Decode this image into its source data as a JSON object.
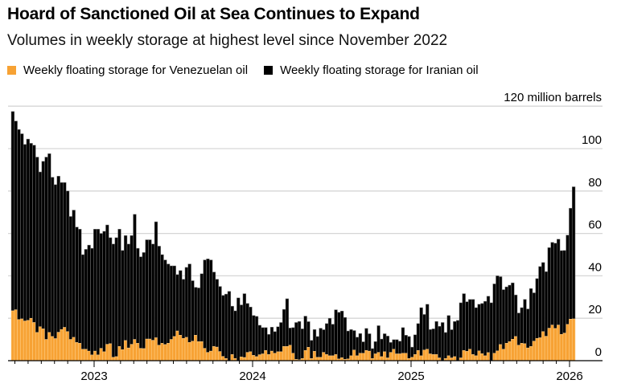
{
  "chart_data": {
    "type": "bar",
    "stacked": true,
    "title": "Hoard of Sanctioned Oil at Sea Continues to Expand",
    "subtitle": "Volumes in weekly storage at highest level since November 2022",
    "ylabel": "",
    "yunit_label": "120 million barrels",
    "ylim": [
      0,
      120
    ],
    "yticks": [
      0,
      20,
      40,
      60,
      80,
      100,
      120
    ],
    "ytick_labels": [
      "0",
      "20",
      "40",
      "60",
      "80",
      "100",
      "120 million barrels"
    ],
    "x_frequency": "weekly",
    "xtick_labels": [
      "2023",
      "2024",
      "2025",
      "2026"
    ],
    "grid": true,
    "legend_placement": "top-left",
    "colors": {
      "venezuelan": "#f7a234",
      "iranian": "#000000"
    },
    "series": [
      {
        "name": "Weekly floating storage for Venezuelan oil",
        "values": [
          23.5,
          24,
          19.4,
          19.7,
          18.7,
          19,
          20,
          18,
          13.3,
          16,
          15,
          10,
          13.3,
          11.4,
          10.4,
          13.4,
          14.7,
          15.7,
          13.7,
          10,
          11,
          8.6,
          8.2,
          5.4,
          5.4,
          4.5,
          2.7,
          4.5,
          2.7,
          5.8,
          4.2,
          7.7,
          8,
          1.6,
          1.9,
          6.7,
          5.2,
          9.5,
          6,
          7.7,
          10,
          8.2,
          5.8,
          5.7,
          10.2,
          10.2,
          9.6,
          10.8,
          7.3,
          8.2,
          7.6,
          8.2,
          10,
          11.4,
          14,
          12,
          10.5,
          11,
          8.6,
          9.2,
          12,
          9,
          9,
          5.8,
          3.9,
          4.5,
          6.7,
          6.4,
          4.3,
          2,
          1,
          0,
          2.9,
          1,
          0,
          1.8,
          1.5,
          3.9,
          4.2,
          2.5,
          1.9,
          2.8,
          3.2,
          4.8,
          2.9,
          4.5,
          3.5,
          4.2,
          4.2,
          6.7,
          6.7,
          7.3,
          3.5,
          0.6,
          0.4,
          1,
          4.8,
          6.3,
          1,
          4.4,
          1.6,
          1.6,
          3.9,
          2.9,
          2.3,
          2.3,
          2.9,
          0.8,
          1.4,
          0.6,
          0.8,
          2.3,
          5,
          2.3,
          3.5,
          3.5,
          4.8,
          4.5,
          1,
          3.2,
          3.9,
          1.9,
          4.2,
          1.3,
          3.9,
          5.4,
          3.2,
          3.2,
          3.5,
          3.5,
          1,
          1.6,
          2.9,
          4.8,
          2.3,
          5,
          5.4,
          3.2,
          2.9,
          2.9,
          1.3,
          0,
          1,
          2.3,
          1.3,
          1.9,
          0,
          1.3,
          4.8,
          4.4,
          5.4,
          2.9,
          2.3,
          4.6,
          3.3,
          2.3,
          3.8,
          0,
          3.5,
          4.6,
          7.6,
          5.4,
          8.2,
          9,
          10.1,
          11.4,
          7.3,
          8.2,
          8,
          6,
          6.7,
          9.2,
          10.5,
          10.8,
          13.7,
          11.5,
          15.3,
          16.8,
          15.2,
          16.8,
          12.4,
          13,
          17.1,
          19.6,
          19.7
        ]
      },
      {
        "name": "Weekly floating storage for Iranian oil",
        "values": [
          94,
          89,
          89.6,
          87.3,
          83.3,
          85.5,
          82.5,
          83.6,
          82.7,
          73,
          79,
          86,
          84.3,
          75.1,
          72.6,
          73.6,
          69.3,
          68.3,
          66.3,
          58,
          60,
          54.4,
          53.8,
          44.6,
          47.1,
          50,
          50.3,
          57.5,
          59.3,
          54.2,
          56.8,
          56.3,
          50,
          53.4,
          56.1,
          55.3,
          46.8,
          49.5,
          49,
          51.3,
          59,
          44.8,
          43.2,
          45.3,
          46.8,
          46.8,
          45.4,
          54.7,
          46.7,
          41.8,
          39.9,
          37.4,
          34.7,
          33.3,
          26.6,
          30.5,
          27.9,
          33,
          37,
          28.5,
          22.6,
          25.3,
          32,
          41.7,
          44.1,
          43,
          35.1,
          32,
          30.7,
          28.8,
          30.4,
          32.7,
          22.8,
          22.5,
          29.6,
          24.5,
          30.1,
          23.1,
          21.1,
          18.8,
          19,
          13.9,
          12.4,
          10.8,
          9.5,
          11.3,
          10.2,
          11.8,
          13.8,
          17.5,
          22.5,
          8.1,
          12.1,
          17.4,
          18.1,
          14,
          16.2,
          12.1,
          8.6,
          10.3,
          9.8,
          13.7,
          10.7,
          14.6,
          17.7,
          14.9,
          21.1,
          22,
          22,
          19.8,
          13.2,
          12.4,
          9.2,
          8.8,
          9.3,
          5.4,
          10.4,
          8.2,
          4.7,
          5.8,
          12.6,
          8.3,
          8.5,
          10.3,
          4.7,
          4.5,
          6.7,
          6,
          12.1,
          8.5,
          10.4,
          4.8,
          9.3,
          12.7,
          22.7,
          16.8,
          21.2,
          11.5,
          12.1,
          15.6,
          14.9,
          18,
          12.3,
          19,
          13.3,
          16.6,
          19,
          26,
          26.8,
          23.4,
          23.5,
          26,
          22.7,
          22,
          23.7,
          25.7,
          26.6,
          27.3,
          32.7,
          35.4,
          32,
          28.1,
          26.6,
          26.6,
          26.6,
          19.6,
          15.2,
          16.8,
          20.9,
          18.4,
          27.3,
          22.8,
          28.2,
          33.6,
          32.6,
          30.5,
          38,
          39,
          40.2,
          40.5,
          39.5,
          39,
          42.1,
          52.3,
          62.3
        ]
      }
    ]
  }
}
